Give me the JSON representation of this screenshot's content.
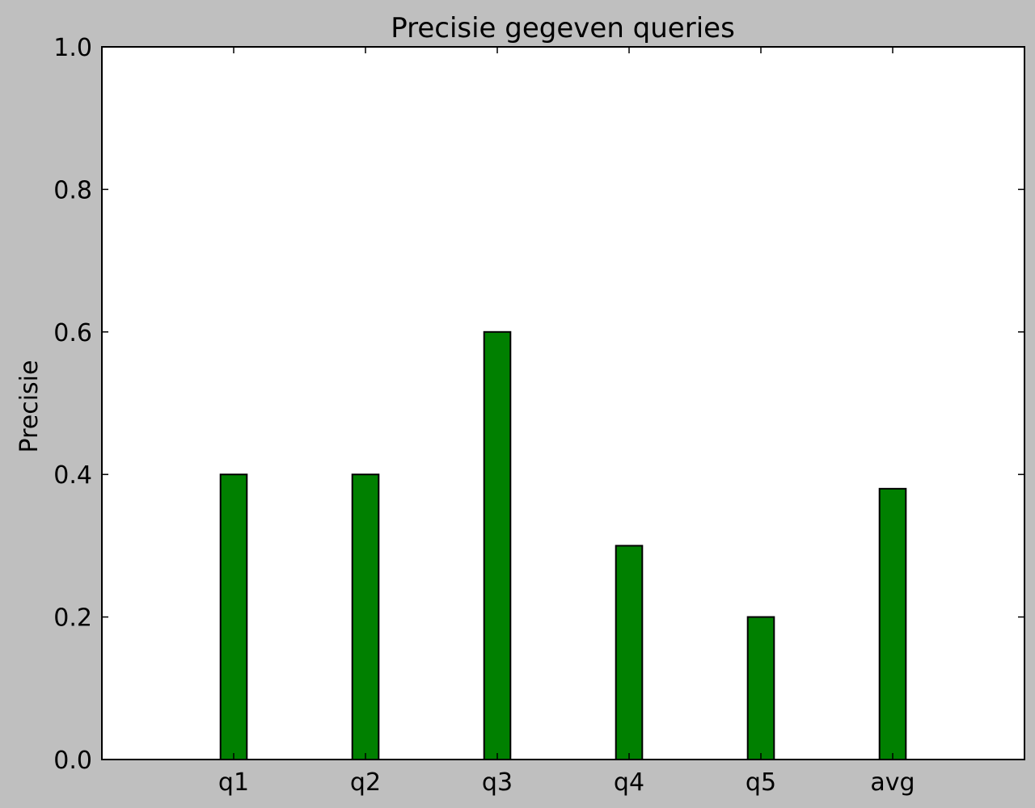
{
  "colors": {
    "figure_background": "#bfbfbf",
    "plot_background": "#ffffff",
    "bar_fill": "#008000",
    "bar_edge": "#000000"
  },
  "chart_data": {
    "type": "bar",
    "title": "Precisie gegeven queries",
    "xlabel": "",
    "ylabel": "Precisie",
    "categories": [
      "q1",
      "q2",
      "q3",
      "q4",
      "q5",
      "avg"
    ],
    "values": [
      0.4,
      0.4,
      0.6,
      0.3,
      0.2,
      0.38
    ],
    "ylim": [
      0.0,
      1.0
    ],
    "yticks": [
      "0.0",
      "0.2",
      "0.4",
      "0.6",
      "0.8",
      "1.0"
    ],
    "grid": false,
    "legend": "none"
  }
}
